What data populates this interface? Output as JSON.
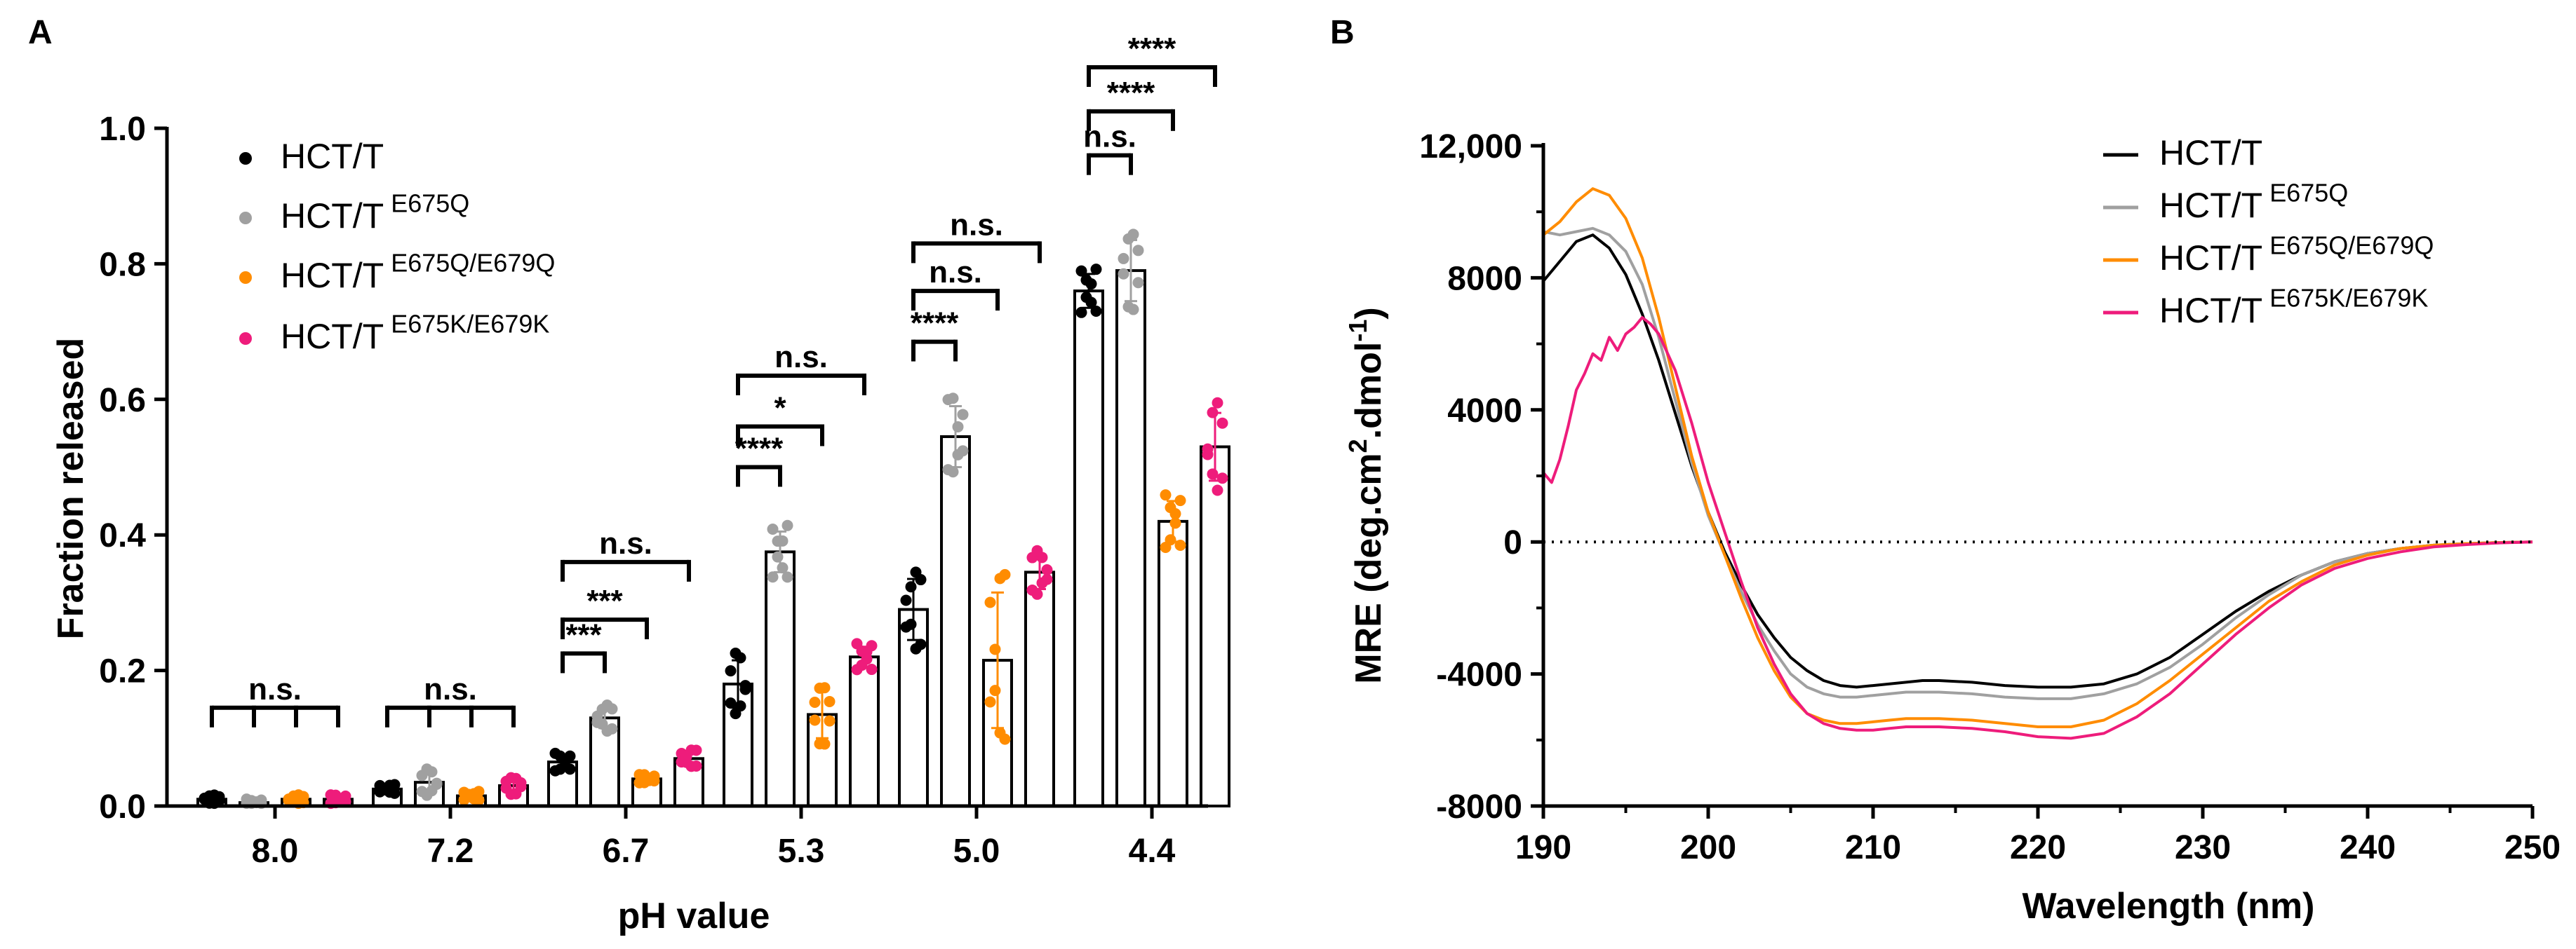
{
  "colors": {
    "black": "#000000",
    "gray": "#A0A0A0",
    "orange": "#FF8C00",
    "pink": "#EE1C7B"
  },
  "chart_data": [
    {
      "type": "bar",
      "panel_label": "A",
      "title": "",
      "xlabel": "pH value",
      "ylabel": "Fraction released",
      "ylim": [
        0,
        1.0
      ],
      "yticks": [
        "0.0",
        "0.2",
        "0.4",
        "0.6",
        "0.8",
        "1.0"
      ],
      "categories": [
        "8.0",
        "7.2",
        "6.7",
        "5.3",
        "5.0",
        "4.4"
      ],
      "legend_position": "top-left",
      "series": [
        {
          "name": "HCT/T",
          "sup": "",
          "color": "#000000",
          "values": [
            0.01,
            0.025,
            0.065,
            0.18,
            0.29,
            0.76
          ],
          "errors": [
            0.005,
            0.005,
            0.01,
            0.035,
            0.045,
            0.025
          ]
        },
        {
          "name": "HCT/T",
          "sup": "E675Q",
          "color": "#A0A0A0",
          "values": [
            0.005,
            0.035,
            0.13,
            0.375,
            0.545,
            0.79
          ],
          "errors": [
            0.004,
            0.015,
            0.015,
            0.03,
            0.045,
            0.045
          ]
        },
        {
          "name": "HCT/T",
          "sup": "E675Q/E679Q",
          "color": "#FF8C00",
          "values": [
            0.01,
            0.015,
            0.04,
            0.135,
            0.215,
            0.42
          ],
          "errors": [
            0.005,
            0.005,
            0.005,
            0.035,
            0.1,
            0.03
          ]
        },
        {
          "name": "HCT/T",
          "sup": "E675K/E679K",
          "color": "#EE1C7B",
          "values": [
            0.01,
            0.03,
            0.07,
            0.22,
            0.345,
            0.53
          ],
          "errors": [
            0.005,
            0.01,
            0.01,
            0.015,
            0.025,
            0.05
          ]
        }
      ],
      "annotations": [
        {
          "category": "8.0",
          "from": 0,
          "to": [
            1,
            2,
            3
          ],
          "level": 0.145,
          "label": "n.s."
        },
        {
          "category": "7.2",
          "from": 0,
          "to": [
            1,
            2,
            3
          ],
          "level": 0.145,
          "label": "n.s."
        },
        {
          "category": "6.7",
          "from": 0,
          "to": [
            1
          ],
          "level": 0.225,
          "label": "***"
        },
        {
          "category": "6.7",
          "from": 0,
          "to": [
            2
          ],
          "level": 0.275,
          "label": "***"
        },
        {
          "category": "6.7",
          "from": 0,
          "to": [
            3
          ],
          "level": 0.36,
          "label": "n.s."
        },
        {
          "category": "5.3",
          "from": 0,
          "to": [
            1
          ],
          "level": 0.5,
          "label": "****"
        },
        {
          "category": "5.3",
          "from": 0,
          "to": [
            2
          ],
          "level": 0.56,
          "label": "*"
        },
        {
          "category": "5.3",
          "from": 0,
          "to": [
            3
          ],
          "level": 0.635,
          "label": "n.s."
        },
        {
          "category": "5.0",
          "from": 0,
          "to": [
            1
          ],
          "level": 0.685,
          "label": "****"
        },
        {
          "category": "5.0",
          "from": 0,
          "to": [
            2
          ],
          "level": 0.76,
          "label": "n.s."
        },
        {
          "category": "5.0",
          "from": 0,
          "to": [
            3
          ],
          "level": 0.83,
          "label": "n.s."
        },
        {
          "category": "4.4",
          "from": 0,
          "to": [
            1
          ],
          "level": 0.96,
          "label": "n.s."
        },
        {
          "category": "4.4",
          "from": 0,
          "to": [
            2
          ],
          "level": 1.025,
          "label": "****"
        },
        {
          "category": "4.4",
          "from": 0,
          "to": [
            3
          ],
          "level": 1.09,
          "label": "****"
        }
      ]
    },
    {
      "type": "line",
      "panel_label": "B",
      "title": "",
      "xlabel": "Wavelength (nm)",
      "ylabel": "MRE (deg.cm²·dmol⁻¹)",
      "ylabel_parts": {
        "pre": "MRE (deg.cm",
        "sup1": "2",
        "mid": ".dmol",
        "sup2": "-1",
        "post": ")"
      },
      "xlim": [
        190,
        250
      ],
      "ylim": [
        -8000,
        12000
      ],
      "xticks": [
        "190",
        "200",
        "210",
        "220",
        "230",
        "240",
        "250"
      ],
      "yticks": [
        "-8000",
        "-4000",
        "0",
        "4000",
        "8000",
        "12,000"
      ],
      "zero_line": "dotted",
      "legend_position": "top-right",
      "series": [
        {
          "name": "HCT/T",
          "sup": "",
          "color": "#000000",
          "x": [
            190,
            191,
            192,
            193,
            194,
            195,
            196,
            197,
            198,
            199,
            200,
            201,
            202,
            203,
            204,
            205,
            206,
            207,
            208,
            209,
            210,
            211,
            212,
            213,
            214,
            216,
            218,
            220,
            222,
            224,
            226,
            228,
            230,
            232,
            234,
            236,
            238,
            240,
            242,
            244,
            246,
            248,
            250
          ],
          "y": [
            7900,
            8500,
            9100,
            9300,
            8900,
            8100,
            6900,
            5500,
            3900,
            2300,
            900,
            -300,
            -1300,
            -2200,
            -2900,
            -3500,
            -3900,
            -4200,
            -4350,
            -4400,
            -4350,
            -4300,
            -4250,
            -4200,
            -4200,
            -4250,
            -4350,
            -4400,
            -4400,
            -4300,
            -4000,
            -3500,
            -2800,
            -2100,
            -1500,
            -1000,
            -600,
            -350,
            -200,
            -100,
            -50,
            -20,
            0
          ]
        },
        {
          "name": "HCT/T",
          "sup": "E675Q",
          "color": "#A0A0A0",
          "x": [
            190,
            191,
            192,
            193,
            194,
            195,
            196,
            197,
            198,
            199,
            200,
            201,
            202,
            203,
            204,
            205,
            206,
            207,
            208,
            209,
            210,
            211,
            212,
            213,
            214,
            216,
            218,
            220,
            222,
            224,
            226,
            228,
            230,
            232,
            234,
            236,
            238,
            240,
            242,
            244,
            246,
            248,
            250
          ],
          "y": [
            9400,
            9300,
            9400,
            9500,
            9300,
            8800,
            7800,
            6200,
            4300,
            2400,
            800,
            -400,
            -1500,
            -2500,
            -3300,
            -4000,
            -4400,
            -4600,
            -4700,
            -4700,
            -4650,
            -4600,
            -4550,
            -4550,
            -4550,
            -4600,
            -4700,
            -4750,
            -4750,
            -4600,
            -4300,
            -3800,
            -3100,
            -2300,
            -1600,
            -1000,
            -600,
            -350,
            -200,
            -100,
            -50,
            -20,
            0
          ]
        },
        {
          "name": "HCT/T",
          "sup": "E675Q/E679Q",
          "color": "#FF8C00",
          "x": [
            190,
            191,
            192,
            193,
            194,
            195,
            196,
            197,
            198,
            199,
            200,
            201,
            202,
            203,
            204,
            205,
            206,
            207,
            208,
            209,
            210,
            211,
            212,
            213,
            214,
            216,
            218,
            220,
            222,
            224,
            226,
            228,
            230,
            232,
            234,
            236,
            238,
            240,
            242,
            244,
            246,
            248,
            250
          ],
          "y": [
            9300,
            9700,
            10300,
            10700,
            10500,
            9800,
            8600,
            6800,
            4700,
            2600,
            900,
            -400,
            -1700,
            -2900,
            -3900,
            -4700,
            -5200,
            -5400,
            -5500,
            -5500,
            -5450,
            -5400,
            -5350,
            -5350,
            -5350,
            -5400,
            -5500,
            -5600,
            -5600,
            -5400,
            -4900,
            -4200,
            -3400,
            -2600,
            -1800,
            -1200,
            -700,
            -400,
            -200,
            -100,
            -50,
            -20,
            0
          ]
        },
        {
          "name": "HCT/T",
          "sup": "E675K/E679K",
          "color": "#EE1C7B",
          "x": [
            190,
            190.5,
            191,
            191.5,
            192,
            192.5,
            193,
            193.5,
            194,
            194.5,
            195,
            195.5,
            196,
            196.5,
            197,
            198,
            199,
            200,
            201,
            202,
            203,
            204,
            205,
            206,
            207,
            208,
            209,
            210,
            211,
            212,
            213,
            214,
            216,
            218,
            220,
            222,
            224,
            226,
            228,
            230,
            232,
            234,
            236,
            238,
            240,
            242,
            244,
            246,
            248,
            250
          ],
          "y": [
            2100,
            1800,
            2500,
            3500,
            4600,
            5100,
            5700,
            5500,
            6200,
            5800,
            6300,
            6500,
            6800,
            6600,
            6300,
            5200,
            3600,
            1800,
            300,
            -1200,
            -2600,
            -3700,
            -4600,
            -5200,
            -5500,
            -5650,
            -5700,
            -5700,
            -5650,
            -5600,
            -5600,
            -5600,
            -5650,
            -5750,
            -5900,
            -5950,
            -5800,
            -5300,
            -4600,
            -3700,
            -2800,
            -2000,
            -1300,
            -800,
            -500,
            -300,
            -150,
            -80,
            -30,
            0
          ]
        }
      ]
    }
  ]
}
